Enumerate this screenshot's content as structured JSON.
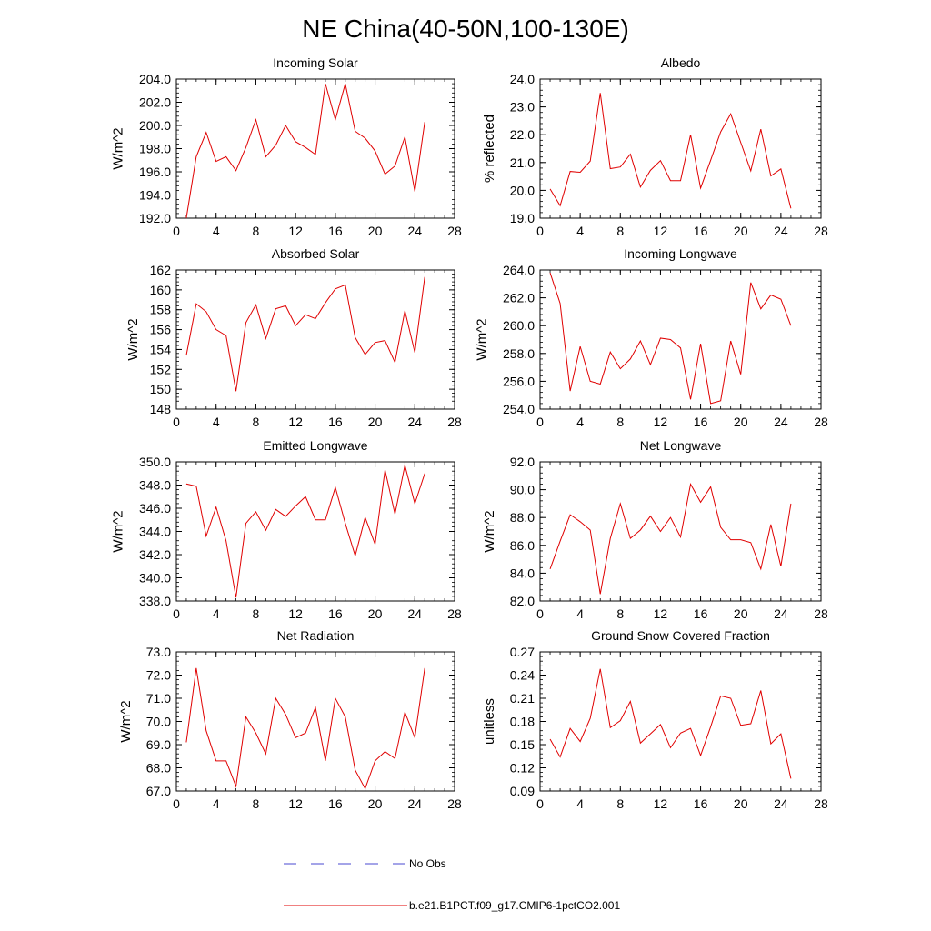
{
  "figure": {
    "title": "NE China(40-50N,100-130E)"
  },
  "legend": {
    "position": "bottom-center",
    "entries": [
      {
        "label": "No Obs",
        "color": "#4a4ad0",
        "style": "dashed"
      },
      {
        "label": "b.e21.B1PCT.f09_g17.CMIP6-1pctCO2.001",
        "color": "#e00000",
        "style": "solid"
      }
    ]
  },
  "chart_data": [
    {
      "type": "line",
      "title": "Incoming Solar",
      "xlabel": "",
      "ylabel": "W/m^2",
      "xlim": [
        0,
        28
      ],
      "ylim": [
        192,
        204
      ],
      "xticks": [
        0,
        4,
        8,
        12,
        16,
        20,
        24,
        28
      ],
      "xtick_labels": [
        "0",
        "4",
        "8",
        "12",
        "16",
        "20",
        "24",
        "28"
      ],
      "yticks": [
        192,
        194,
        196,
        198,
        200,
        202,
        204
      ],
      "ytick_labels": [
        "192.0",
        "194.0",
        "196.0",
        "198.0",
        "200.0",
        "202.0",
        "204.0"
      ],
      "x": [
        1,
        2,
        3,
        4,
        5,
        6,
        7,
        8,
        9,
        10,
        11,
        12,
        13,
        14,
        15,
        16,
        17,
        18,
        19,
        20,
        21,
        22,
        23,
        24,
        25
      ],
      "series": [
        {
          "color": "#e00000",
          "values": [
            192.0,
            197.3,
            199.4,
            196.9,
            197.3,
            196.1,
            198.1,
            200.5,
            197.3,
            198.3,
            200.0,
            198.6,
            198.1,
            197.5,
            203.6,
            200.5,
            203.6,
            199.5,
            198.9,
            197.8,
            195.8,
            196.5,
            199.0,
            194.3,
            200.3
          ]
        }
      ]
    },
    {
      "type": "line",
      "title": "Albedo",
      "xlabel": "",
      "ylabel": "% reflected",
      "xlim": [
        0,
        28
      ],
      "ylim": [
        19,
        24
      ],
      "xticks": [
        0,
        4,
        8,
        12,
        16,
        20,
        24,
        28
      ],
      "xtick_labels": [
        "0",
        "4",
        "8",
        "12",
        "16",
        "20",
        "24",
        "28"
      ],
      "yticks": [
        19,
        20,
        21,
        22,
        23,
        24
      ],
      "ytick_labels": [
        "19.0",
        "20.0",
        "21.0",
        "22.0",
        "23.0",
        "24.0"
      ],
      "x": [
        1,
        2,
        3,
        4,
        5,
        6,
        7,
        8,
        9,
        10,
        11,
        12,
        13,
        14,
        15,
        16,
        17,
        18,
        19,
        20,
        21,
        22,
        23,
        24,
        25
      ],
      "series": [
        {
          "color": "#e00000",
          "values": [
            20.05,
            19.45,
            20.68,
            20.65,
            21.05,
            23.5,
            20.78,
            20.84,
            21.3,
            20.12,
            20.72,
            21.07,
            20.35,
            20.35,
            22.0,
            20.08,
            21.08,
            22.1,
            22.75,
            21.72,
            20.7,
            22.2,
            20.52,
            20.77,
            19.35
          ]
        }
      ]
    },
    {
      "type": "line",
      "title": "Absorbed Solar",
      "xlabel": "",
      "ylabel": "W/m^2",
      "xlim": [
        0,
        28
      ],
      "ylim": [
        148,
        162
      ],
      "xticks": [
        0,
        4,
        8,
        12,
        16,
        20,
        24,
        28
      ],
      "xtick_labels": [
        "0",
        "4",
        "8",
        "12",
        "16",
        "20",
        "24",
        "28"
      ],
      "yticks": [
        148,
        150,
        152,
        154,
        156,
        158,
        160,
        162
      ],
      "ytick_labels": [
        "148",
        "150",
        "152",
        "154",
        "156",
        "158",
        "160",
        "162"
      ],
      "x": [
        1,
        2,
        3,
        4,
        5,
        6,
        7,
        8,
        9,
        10,
        11,
        12,
        13,
        14,
        15,
        16,
        17,
        18,
        19,
        20,
        21,
        22,
        23,
        24,
        25
      ],
      "series": [
        {
          "color": "#e00000",
          "values": [
            153.4,
            158.6,
            157.8,
            156.0,
            155.4,
            149.8,
            156.7,
            158.5,
            155.1,
            158.1,
            158.4,
            156.4,
            157.5,
            157.1,
            158.7,
            160.1,
            160.5,
            155.2,
            153.5,
            154.7,
            154.9,
            152.7,
            157.9,
            153.7,
            161.3
          ]
        }
      ]
    },
    {
      "type": "line",
      "title": "Incoming Longwave",
      "xlabel": "",
      "ylabel": "W/m^2",
      "xlim": [
        0,
        28
      ],
      "ylim": [
        254,
        264
      ],
      "xticks": [
        0,
        4,
        8,
        12,
        16,
        20,
        24,
        28
      ],
      "xtick_labels": [
        "0",
        "4",
        "8",
        "12",
        "16",
        "20",
        "24",
        "28"
      ],
      "yticks": [
        254,
        256,
        258,
        260,
        262,
        264
      ],
      "ytick_labels": [
        "254.0",
        "256.0",
        "258.0",
        "260.0",
        "262.0",
        "264.0"
      ],
      "x": [
        1,
        2,
        3,
        4,
        5,
        6,
        7,
        8,
        9,
        10,
        11,
        12,
        13,
        14,
        15,
        16,
        17,
        18,
        19,
        20,
        21,
        22,
        23,
        24,
        25
      ],
      "series": [
        {
          "color": "#e00000",
          "values": [
            263.8,
            261.6,
            255.3,
            258.5,
            256.0,
            255.8,
            258.1,
            256.9,
            257.6,
            258.9,
            257.2,
            259.1,
            259.0,
            258.4,
            254.7,
            258.7,
            254.4,
            254.6,
            258.9,
            256.5,
            263.1,
            261.2,
            262.2,
            261.9,
            260.0
          ]
        }
      ]
    },
    {
      "type": "line",
      "title": "Emitted Longwave",
      "xlabel": "",
      "ylabel": "W/m^2",
      "xlim": [
        0,
        28
      ],
      "ylim": [
        338,
        350
      ],
      "xticks": [
        0,
        4,
        8,
        12,
        16,
        20,
        24,
        28
      ],
      "xtick_labels": [
        "0",
        "4",
        "8",
        "12",
        "16",
        "20",
        "24",
        "28"
      ],
      "yticks": [
        338,
        340,
        342,
        344,
        346,
        348,
        350
      ],
      "ytick_labels": [
        "338.0",
        "340.0",
        "342.0",
        "344.0",
        "346.0",
        "348.0",
        "350.0"
      ],
      "x": [
        1,
        2,
        3,
        4,
        5,
        6,
        7,
        8,
        9,
        10,
        11,
        12,
        13,
        14,
        15,
        16,
        17,
        18,
        19,
        20,
        21,
        22,
        23,
        24,
        25
      ],
      "series": [
        {
          "color": "#e00000",
          "values": [
            348.1,
            347.9,
            343.6,
            346.1,
            343.2,
            338.3,
            344.7,
            345.7,
            344.1,
            345.9,
            345.3,
            346.2,
            347.0,
            345.0,
            345.0,
            347.8,
            344.7,
            341.9,
            345.2,
            342.9,
            349.3,
            345.5,
            349.7,
            346.4,
            349.0
          ]
        }
      ]
    },
    {
      "type": "line",
      "title": "Net Longwave",
      "xlabel": "",
      "ylabel": "W/m^2",
      "xlim": [
        0,
        28
      ],
      "ylim": [
        82,
        92
      ],
      "xticks": [
        0,
        4,
        8,
        12,
        16,
        20,
        24,
        28
      ],
      "xtick_labels": [
        "0",
        "4",
        "8",
        "12",
        "16",
        "20",
        "24",
        "28"
      ],
      "yticks": [
        82,
        84,
        86,
        88,
        90,
        92
      ],
      "ytick_labels": [
        "82.0",
        "84.0",
        "86.0",
        "88.0",
        "90.0",
        "92.0"
      ],
      "x": [
        1,
        2,
        3,
        4,
        5,
        6,
        7,
        8,
        9,
        10,
        11,
        12,
        13,
        14,
        15,
        16,
        17,
        18,
        19,
        20,
        21,
        22,
        23,
        24,
        25
      ],
      "series": [
        {
          "color": "#e00000",
          "values": [
            84.3,
            86.3,
            88.2,
            87.7,
            87.1,
            82.5,
            86.5,
            89.0,
            86.5,
            87.1,
            88.1,
            87.0,
            88.0,
            86.6,
            90.4,
            89.1,
            90.2,
            87.3,
            86.4,
            86.4,
            86.2,
            84.3,
            87.5,
            84.5,
            89.0
          ]
        }
      ]
    },
    {
      "type": "line",
      "title": "Net Radiation",
      "xlabel": "",
      "ylabel": "W/m^2",
      "xlim": [
        0,
        28
      ],
      "ylim": [
        67,
        73
      ],
      "xticks": [
        0,
        4,
        8,
        12,
        16,
        20,
        24,
        28
      ],
      "xtick_labels": [
        "0",
        "4",
        "8",
        "12",
        "16",
        "20",
        "24",
        "28"
      ],
      "yticks": [
        67,
        68,
        69,
        70,
        71,
        72,
        73
      ],
      "ytick_labels": [
        "67.0",
        "68.0",
        "69.0",
        "70.0",
        "71.0",
        "72.0",
        "73.0"
      ],
      "x": [
        1,
        2,
        3,
        4,
        5,
        6,
        7,
        8,
        9,
        10,
        11,
        12,
        13,
        14,
        15,
        16,
        17,
        18,
        19,
        20,
        21,
        22,
        23,
        24,
        25
      ],
      "series": [
        {
          "color": "#e00000",
          "values": [
            69.1,
            72.3,
            69.6,
            68.3,
            68.3,
            67.2,
            70.2,
            69.5,
            68.6,
            71.0,
            70.3,
            69.3,
            69.5,
            70.6,
            68.3,
            71.0,
            70.2,
            67.9,
            67.1,
            68.3,
            68.7,
            68.4,
            70.4,
            69.3,
            72.3
          ]
        }
      ]
    },
    {
      "type": "line",
      "title": "Ground Snow Covered Fraction",
      "xlabel": "",
      "ylabel": "unitless",
      "xlim": [
        0,
        28
      ],
      "ylim": [
        0.09,
        0.27
      ],
      "xticks": [
        0,
        4,
        8,
        12,
        16,
        20,
        24,
        28
      ],
      "xtick_labels": [
        "0",
        "4",
        "8",
        "12",
        "16",
        "20",
        "24",
        "28"
      ],
      "yticks": [
        0.09,
        0.12,
        0.15,
        0.18,
        0.21,
        0.24,
        0.27
      ],
      "ytick_labels": [
        "0.09",
        "0.12",
        "0.15",
        "0.18",
        "0.21",
        "0.24",
        "0.27"
      ],
      "x": [
        1,
        2,
        3,
        4,
        5,
        6,
        7,
        8,
        9,
        10,
        11,
        12,
        13,
        14,
        15,
        16,
        17,
        18,
        19,
        20,
        21,
        22,
        23,
        24,
        25
      ],
      "series": [
        {
          "color": "#e00000",
          "values": [
            0.157,
            0.134,
            0.171,
            0.154,
            0.184,
            0.248,
            0.172,
            0.181,
            0.206,
            0.152,
            0.164,
            0.176,
            0.146,
            0.165,
            0.171,
            0.136,
            0.173,
            0.213,
            0.21,
            0.175,
            0.177,
            0.22,
            0.151,
            0.164,
            0.106
          ]
        }
      ]
    }
  ]
}
